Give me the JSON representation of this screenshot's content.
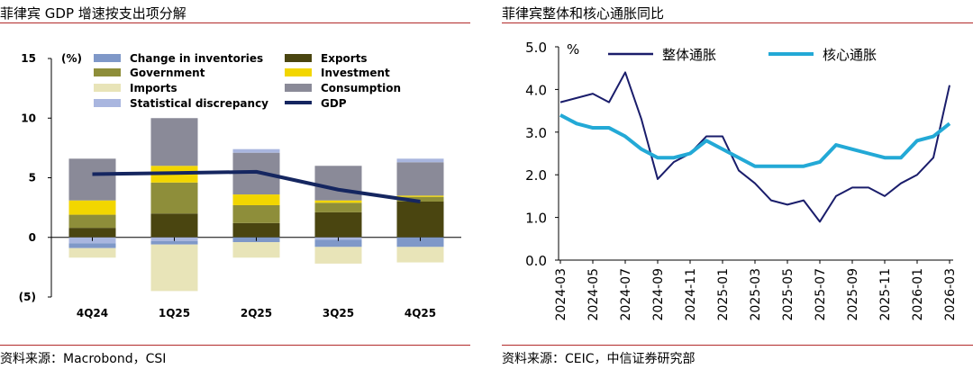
{
  "left_panel": {
    "title": "菲律宾 GDP 增速按支出项分解",
    "source": "资料来源：Macrobond，CSI"
  },
  "right_panel": {
    "title": "菲律宾整体和核心通胀同比",
    "source": "资料来源：CEIC，中信证券研究部"
  },
  "colors": {
    "rule": "#b22a2a",
    "change_in_inventories": "#7f98c8",
    "government": "#8e8e3a",
    "imports": "#e8e4b8",
    "statistical_discrepancy": "#a9b6df",
    "exports": "#4a4510",
    "investment": "#f2d600",
    "consumption": "#8a8a98",
    "gdp": "#152660",
    "headline": "#1a1d6b",
    "core": "#23a9d6"
  },
  "chart_data": [
    {
      "type": "bar",
      "stacked": true,
      "unit_label": "(%)",
      "categories": [
        "4Q24",
        "1Q25",
        "2Q25",
        "3Q25",
        "4Q25"
      ],
      "ylim": [
        -5,
        15
      ],
      "yticks": [
        -5,
        0,
        5,
        10,
        15
      ],
      "ytick_labels": [
        "(5)",
        "0",
        "5",
        "10",
        "15"
      ],
      "grid": false,
      "legend_position": "top",
      "series": [
        {
          "name": "Change in inventories",
          "key": "change_in_inventories",
          "values": [
            -0.4,
            -0.3,
            -0.4,
            -0.6,
            -0.8
          ]
        },
        {
          "name": "Exports",
          "key": "exports",
          "values": [
            0.8,
            2.0,
            1.2,
            2.1,
            3.0
          ]
        },
        {
          "name": "Government",
          "key": "government",
          "values": [
            1.1,
            2.6,
            1.5,
            0.8,
            0.4
          ]
        },
        {
          "name": "Investment",
          "key": "investment",
          "values": [
            1.2,
            1.4,
            0.9,
            0.2,
            0.1
          ]
        },
        {
          "name": "Imports",
          "key": "imports",
          "values": [
            -0.8,
            -3.9,
            -1.3,
            -1.4,
            -1.3
          ]
        },
        {
          "name": "Consumption",
          "key": "consumption",
          "values": [
            3.5,
            4.0,
            3.5,
            2.9,
            2.8
          ]
        },
        {
          "name": "Statistical discrepancy",
          "key": "statistical_discrepancy",
          "values": [
            -0.5,
            -0.3,
            0.3,
            -0.2,
            0.3
          ]
        },
        {
          "name": "GDP",
          "key": "gdp",
          "type": "line",
          "values": [
            5.3,
            5.4,
            5.5,
            4.0,
            3.0
          ]
        }
      ]
    },
    {
      "type": "line",
      "unit_label": "%",
      "x": [
        "2024-03",
        "2024-04",
        "2024-05",
        "2024-06",
        "2024-07",
        "2024-08",
        "2024-09",
        "2024-10",
        "2024-11",
        "2024-12",
        "2025-01",
        "2025-02",
        "2025-03",
        "2025-04",
        "2025-05",
        "2025-06",
        "2025-07",
        "2025-08",
        "2025-09",
        "2025-10",
        "2025-11",
        "2025-12",
        "2026-01",
        "2026-02",
        "2026-03"
      ],
      "x_tick_labels": [
        "2024-03",
        "2024-05",
        "2024-07",
        "2024-09",
        "2024-11",
        "2025-01",
        "2025-03",
        "2025-05",
        "2025-07",
        "2025-09",
        "2025-11",
        "2026-01",
        "2026-03"
      ],
      "ylim": [
        0,
        5
      ],
      "yticks": [
        0,
        1,
        2,
        3,
        4,
        5
      ],
      "ytick_labels": [
        "0.0",
        "1.0",
        "2.0",
        "3.0",
        "4.0",
        "5.0"
      ],
      "grid": false,
      "legend_position": "top",
      "series": [
        {
          "name": "整体通胀",
          "key": "headline",
          "values": [
            3.7,
            3.8,
            3.9,
            3.7,
            4.4,
            3.3,
            1.9,
            2.3,
            2.5,
            2.9,
            2.9,
            2.1,
            1.8,
            1.4,
            1.3,
            1.4,
            0.9,
            1.5,
            1.7,
            1.7,
            1.5,
            1.8,
            2.0,
            2.4,
            4.1
          ]
        },
        {
          "name": "核心通胀",
          "key": "core",
          "values": [
            3.4,
            3.2,
            3.1,
            3.1,
            2.9,
            2.6,
            2.4,
            2.4,
            2.5,
            2.8,
            2.6,
            2.4,
            2.2,
            2.2,
            2.2,
            2.2,
            2.3,
            2.7,
            2.6,
            2.5,
            2.4,
            2.4,
            2.8,
            2.9,
            3.2
          ]
        }
      ]
    }
  ]
}
